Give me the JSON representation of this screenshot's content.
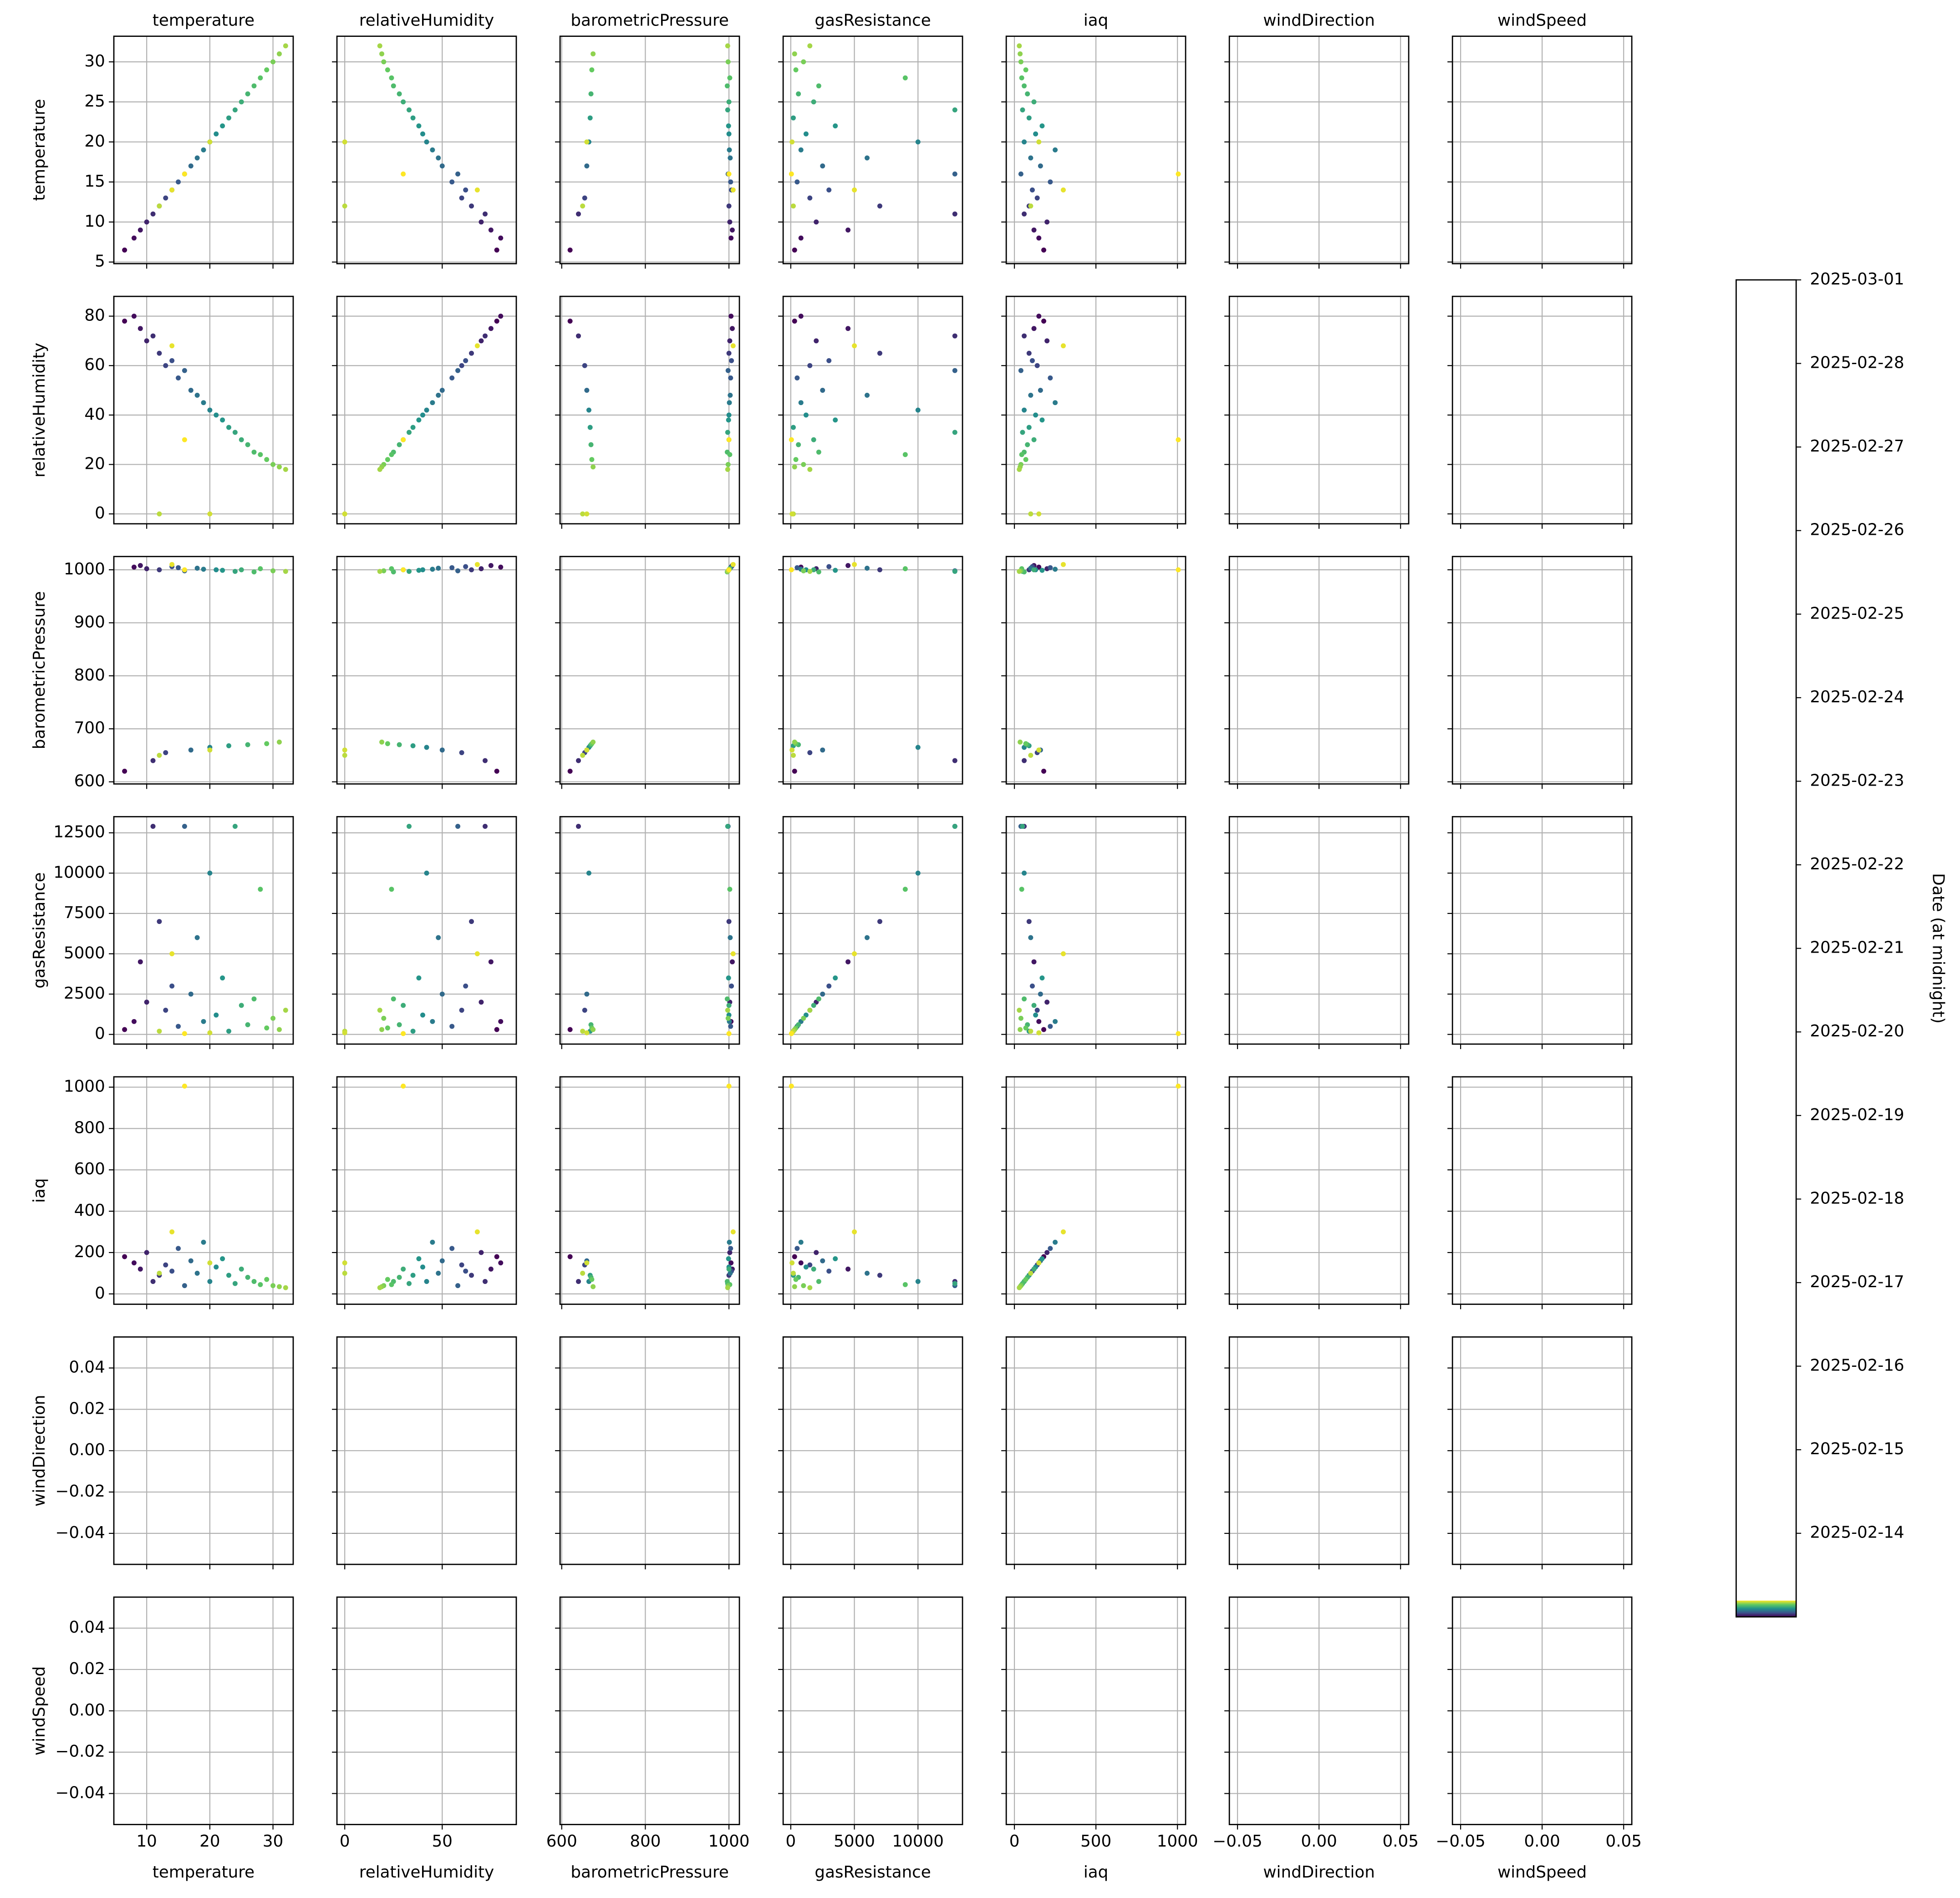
{
  "chart_data": {
    "type": "scatter_matrix",
    "colormap": "viridis",
    "grid": true,
    "variables": [
      {
        "name": "temperature",
        "lim": [
          4.8,
          33.2
        ],
        "xticks": [
          10,
          20,
          30
        ],
        "yticks": [
          5,
          10,
          15,
          20,
          25,
          30
        ],
        "values": [
          6.5,
          8,
          9,
          10,
          11,
          12,
          13,
          14,
          15,
          16,
          17,
          18,
          19,
          20,
          21,
          22,
          23,
          24,
          25,
          26,
          27,
          28,
          29,
          30,
          31,
          32,
          12,
          20,
          14,
          16
        ]
      },
      {
        "name": "relativeHumidity",
        "lim": [
          -4,
          88
        ],
        "xticks": [
          0,
          50
        ],
        "yticks": [
          0,
          20,
          40,
          60,
          80
        ],
        "values": [
          78,
          80,
          75,
          70,
          72,
          65,
          60,
          62,
          55,
          58,
          50,
          48,
          45,
          42,
          40,
          38,
          35,
          33,
          30,
          28,
          25,
          24,
          22,
          20,
          19,
          18,
          0,
          0,
          68,
          30
        ]
      },
      {
        "name": "barometricPressure",
        "lim": [
          596,
          1025
        ],
        "xticks": [
          600,
          800,
          1000
        ],
        "yticks": [
          600,
          700,
          800,
          900,
          1000
        ],
        "values": [
          620,
          1005,
          1008,
          1002,
          640,
          1000,
          655,
          1006,
          1004,
          998,
          660,
          1003,
          1001,
          665,
          1000,
          999,
          668,
          997,
          1000,
          670,
          996,
          1002,
          672,
          998,
          675,
          997,
          650,
          660,
          1010,
          1000
        ]
      },
      {
        "name": "gasResistance",
        "lim": [
          -600,
          13500
        ],
        "xticks": [
          0,
          5000,
          10000
        ],
        "yticks": [
          0,
          2500,
          5000,
          7500,
          10000,
          12500
        ],
        "values": [
          300,
          800,
          4500,
          2000,
          12900,
          7000,
          1500,
          3000,
          500,
          12900,
          2500,
          6000,
          800,
          10000,
          1200,
          3500,
          200,
          12900,
          1800,
          600,
          2200,
          9000,
          400,
          1000,
          300,
          1500,
          200,
          100,
          5000,
          50
        ]
      },
      {
        "name": "iaq",
        "lim": [
          -50,
          1050
        ],
        "xticks": [
          0,
          500,
          1000
        ],
        "yticks": [
          0,
          200,
          400,
          600,
          800,
          1000
        ],
        "values": [
          180,
          150,
          120,
          200,
          60,
          90,
          140,
          110,
          220,
          40,
          160,
          100,
          250,
          60,
          130,
          170,
          90,
          50,
          120,
          80,
          60,
          45,
          70,
          40,
          35,
          30,
          100,
          150,
          300,
          1005
        ]
      },
      {
        "name": "windDirection",
        "lim": [
          -0.055,
          0.055
        ],
        "xticks": [
          {
            "value": -0.05,
            "label": "−0.05"
          },
          {
            "value": 0,
            "label": "0.00"
          },
          {
            "value": 0.05,
            "label": "0.05"
          }
        ],
        "yticks": [
          {
            "value": -0.04,
            "label": "−0.04"
          },
          {
            "value": -0.02,
            "label": "−0.02"
          },
          {
            "value": 0,
            "label": "0.00"
          },
          0.02,
          0.04
        ],
        "values": [
          null,
          null,
          null,
          null,
          null,
          null,
          null,
          null,
          null,
          null,
          null,
          null,
          null,
          null,
          null,
          null,
          null,
          null,
          null,
          null,
          null,
          null,
          null,
          null,
          null,
          null,
          null,
          null,
          null,
          null
        ]
      },
      {
        "name": "windSpeed",
        "lim": [
          -0.055,
          0.055
        ],
        "xticks": [
          {
            "value": -0.05,
            "label": "−0.05"
          },
          {
            "value": 0,
            "label": "0.00"
          },
          {
            "value": 0.05,
            "label": "0.05"
          }
        ],
        "yticks": [
          {
            "value": -0.04,
            "label": "−0.04"
          },
          {
            "value": -0.02,
            "label": "−0.02"
          },
          {
            "value": 0,
            "label": "0.00"
          },
          0.02,
          0.04
        ],
        "values": [
          null,
          null,
          null,
          null,
          null,
          null,
          null,
          null,
          null,
          null,
          null,
          null,
          null,
          null,
          null,
          null,
          null,
          null,
          null,
          null,
          null,
          null,
          null,
          null,
          null,
          null,
          null,
          null,
          null,
          null
        ]
      }
    ],
    "colorbar": {
      "label": "Date (at midnight)",
      "lim": [
        "2025-02-13",
        "2025-03-01"
      ],
      "ticks": [
        "2025-02-14",
        "2025-02-15",
        "2025-02-16",
        "2025-02-17",
        "2025-02-18",
        "2025-02-19",
        "2025-02-20",
        "2025-02-21",
        "2025-02-22",
        "2025-02-23",
        "2025-02-24",
        "2025-02-25",
        "2025-02-26",
        "2025-02-27",
        "2025-02-28",
        "2025-03-01"
      ]
    }
  }
}
